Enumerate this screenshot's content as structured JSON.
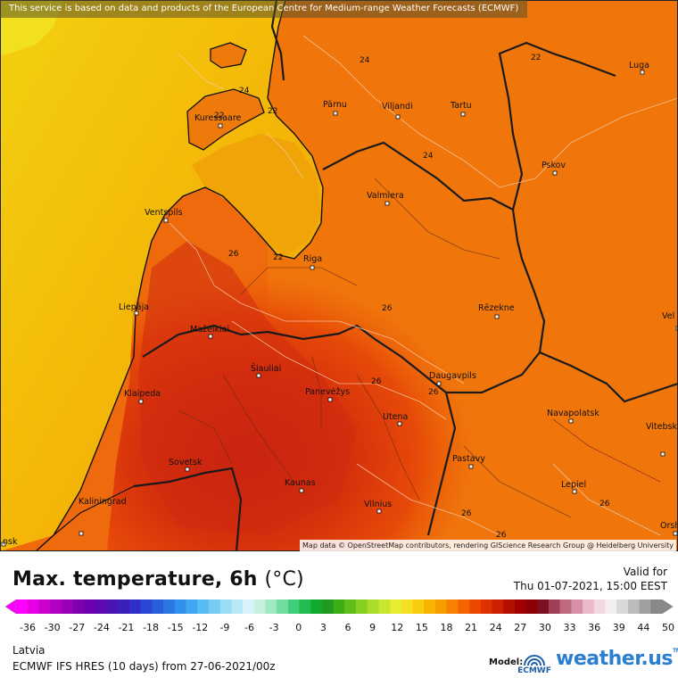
{
  "header": {
    "attribution": "This service is based on data and products of the European Centre for Medium-range Weather Forecasts (ECMWF)"
  },
  "map": {
    "cities": [
      {
        "name": "Luga"
      },
      {
        "name": "Kuressaare"
      },
      {
        "name": "Pärnu"
      },
      {
        "name": "Viljandi"
      },
      {
        "name": "Tartu"
      },
      {
        "name": "Pskov"
      },
      {
        "name": "Valmiera"
      },
      {
        "name": "Ventspils"
      },
      {
        "name": "Riga"
      },
      {
        "name": "Liepāja"
      },
      {
        "name": "Rēzekne"
      },
      {
        "name": "Mažeikiai"
      },
      {
        "name": "Šiauliai"
      },
      {
        "name": "Daugavpils"
      },
      {
        "name": "Klaipeda"
      },
      {
        "name": "Panevėžys"
      },
      {
        "name": "Utena"
      },
      {
        "name": "Navapolatsk"
      },
      {
        "name": "Vitebsk"
      },
      {
        "name": "Sovetsk"
      },
      {
        "name": "Pastavy"
      },
      {
        "name": "Kaunas"
      },
      {
        "name": "Lepiel"
      },
      {
        "name": "Kaliningrad"
      },
      {
        "name": "Vilnius"
      },
      {
        "name": "Orsh"
      },
      {
        "name": "Vel"
      },
      {
        "name": "nsk"
      }
    ],
    "contour_labels": [
      "24",
      "22",
      "24",
      "24",
      "22",
      "26",
      "22",
      "26",
      "26",
      "26",
      "26",
      "26",
      "26",
      "22"
    ],
    "copyright": "Map data © OpenStreetMap contributors, rendering GIScience Research Group @ Heidelberg University"
  },
  "footer": {
    "title": "Max. temperature, 6h",
    "unit": "(°C)",
    "valid_label": "Valid for",
    "valid_time": "Thu 01-07-2021, 15:00 EEST",
    "region": "Latvia",
    "model_run": "ECMWF IFS HRES (10 days) from 27-06-2021/00z",
    "model_label": "Model:",
    "model_logo_text": "ECMWF",
    "brand": "weather.us",
    "brand_tm": "TM"
  },
  "scale": {
    "tick_labels": [
      "-36",
      "-30",
      "-27",
      "-24",
      "-21",
      "-18",
      "-15",
      "-12",
      "-9",
      "-6",
      "-3",
      "0",
      "3",
      "6",
      "9",
      "12",
      "15",
      "18",
      "21",
      "24",
      "27",
      "30",
      "33",
      "36",
      "39",
      "44",
      "50"
    ],
    "colors": [
      "#ff00ff",
      "#e600e6",
      "#cc00cc",
      "#b000c0",
      "#9a00b8",
      "#8000b0",
      "#6a00b0",
      "#5a0ab0",
      "#4b14b4",
      "#3c1ebc",
      "#3030c8",
      "#2a48d4",
      "#2860dc",
      "#2a78e4",
      "#3090ec",
      "#40a8f0",
      "#58bcf2",
      "#78ccf4",
      "#98dcf6",
      "#b8e8f8",
      "#d8f2fa",
      "#c8f0e0",
      "#a0e8c0",
      "#70dca0",
      "#40cc78",
      "#20bc50",
      "#10aa30",
      "#209a20",
      "#3cae18",
      "#60c018",
      "#88d020",
      "#aadc28",
      "#c8e630",
      "#e6ec30",
      "#f4e020",
      "#f8cc10",
      "#f8b400",
      "#f89c00",
      "#f88000",
      "#f46400",
      "#ec4800",
      "#e03200",
      "#cc2000",
      "#b41000",
      "#a00000",
      "#8c0008",
      "#7a1020",
      "#a04058",
      "#c06880",
      "#d890a8",
      "#eab8c8",
      "#f4d8e0",
      "#f0f0f0",
      "#d8d8d8",
      "#bcbcbc",
      "#a0a0a0",
      "#888888"
    ]
  }
}
